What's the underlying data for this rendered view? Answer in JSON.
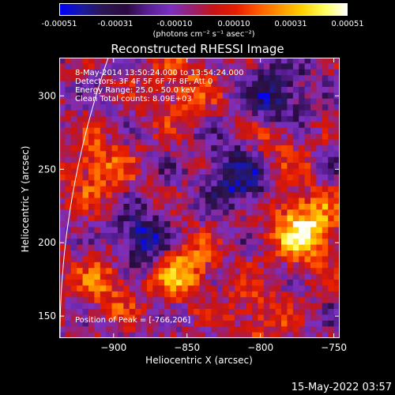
{
  "colorbar": {
    "ticks": [
      "-0.00051",
      "-0.00031",
      "-0.00010",
      "0.00010",
      "0.00031",
      "0.00051"
    ],
    "unit_label": "(photons cm⁻² s⁻¹ asec⁻²)",
    "colors": [
      "#0000ff",
      "#1a1aa0",
      "#2c1650",
      "#2a0a40",
      "#5a1f95",
      "#7a30c0",
      "#9a2070",
      "#c81414",
      "#e61e00",
      "#ff5a00",
      "#ff9600",
      "#ffd200",
      "#ffff60",
      "#ffffff"
    ]
  },
  "chart_data": {
    "type": "heatmap",
    "title": "Reconstructed RHESSI Image",
    "xlabel": "Heliocentric X (arcsec)",
    "ylabel": "Heliocentric Y (arcsec)",
    "xlim": [
      -937,
      -746
    ],
    "ylim": [
      135,
      326
    ],
    "xticks": [
      -900,
      -850,
      -800,
      -750
    ],
    "yticks": [
      150,
      200,
      250,
      300
    ],
    "colorbar_range": [
      -0.00051,
      0.00051
    ],
    "annotations": [
      "8-May-2014 13:50:24.000 to 13:54:24.000",
      "Detectors: 3F 4F 5F 6F 7F 8F, Att 0",
      "Energy Range: 25.0 - 50.0 keV",
      "Clean    Total counts: 8.09E+03"
    ],
    "peak_label": "Position of Peak = [-766,206]",
    "peak": [
      -766,
      206
    ],
    "bright_sources": [
      {
        "x": -770,
        "y": 210,
        "value": 0.00051
      },
      {
        "x": -855,
        "y": 184,
        "value": 0.00038
      },
      {
        "x": -912,
        "y": 250,
        "value": 0.00028
      },
      {
        "x": -855,
        "y": 305,
        "value": 0.00022
      },
      {
        "x": -905,
        "y": 172,
        "value": 0.00025
      },
      {
        "x": -802,
        "y": 150,
        "value": 0.0002
      },
      {
        "x": -790,
        "y": 265,
        "value": 0.00018
      }
    ],
    "dark_regions": [
      {
        "x": -880,
        "y": 200,
        "value": -0.00045
      },
      {
        "x": -815,
        "y": 245,
        "value": -0.0004
      },
      {
        "x": -790,
        "y": 300,
        "value": -0.00035
      }
    ]
  },
  "footer": {
    "date": "15-May-2022 03:57"
  }
}
